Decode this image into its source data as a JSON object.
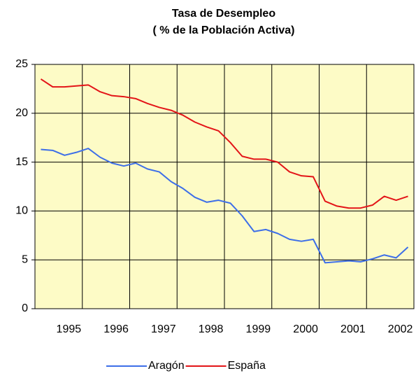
{
  "chart_data": {
    "type": "line",
    "title": "Tasa de Desempleo",
    "subtitle": "( % de la Población Activa)",
    "categories": [
      null,
      null,
      "1995",
      null,
      null,
      null,
      "1996",
      null,
      null,
      null,
      "1997",
      null,
      null,
      null,
      "1998",
      null,
      null,
      null,
      "1999",
      null,
      null,
      null,
      "2000",
      null,
      null,
      null,
      "2001",
      null,
      null,
      null,
      "2002",
      null
    ],
    "series": [
      {
        "name": "Aragón",
        "color": "#3d6ee8",
        "values": [
          16.3,
          16.2,
          15.7,
          16.0,
          16.4,
          15.5,
          14.9,
          14.6,
          14.9,
          14.3,
          14.0,
          13.0,
          12.3,
          11.4,
          10.9,
          11.1,
          10.8,
          9.5,
          7.9,
          8.1,
          7.7,
          7.1,
          6.9,
          7.1,
          4.7,
          4.8,
          4.9,
          4.8,
          5.1,
          5.5,
          5.2,
          6.3
        ]
      },
      {
        "name": "España",
        "color": "#e31418",
        "values": [
          23.5,
          22.7,
          22.7,
          22.8,
          22.9,
          22.2,
          21.8,
          21.7,
          21.5,
          21.0,
          20.6,
          20.3,
          19.8,
          19.1,
          18.6,
          18.2,
          17.0,
          15.6,
          15.3,
          15.3,
          15.0,
          14.0,
          13.6,
          13.5,
          11.0,
          10.5,
          10.3,
          10.3,
          10.6,
          11.5,
          11.1,
          11.5
        ]
      }
    ],
    "ylim": [
      0,
      25
    ],
    "yticks": [
      0,
      5,
      10,
      15,
      20,
      25
    ],
    "grid": true,
    "legend": "bottom"
  }
}
